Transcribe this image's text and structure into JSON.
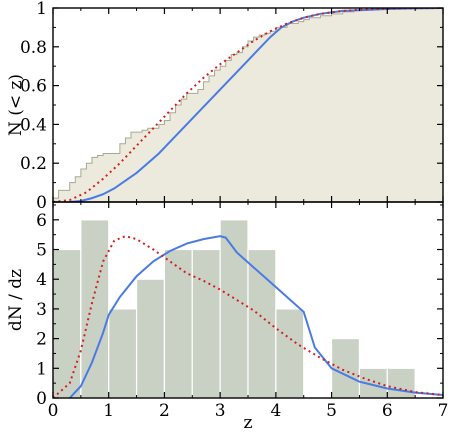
{
  "chart_data": [
    {
      "type": "line",
      "ylabel": "N (< z)",
      "xlim": [
        0,
        7
      ],
      "ylim": [
        0,
        1
      ],
      "xticks": [
        "0",
        "1",
        "2",
        "3",
        "4",
        "5",
        "6",
        "7"
      ],
      "yticks": [
        "0",
        "0.2",
        "0.4",
        "0.6",
        "0.8",
        "1"
      ],
      "colors": {
        "fill": "#ece9dd",
        "edge": "#a6aa92",
        "blue": "#4a7be4",
        "red": "#d21f1f"
      },
      "step_cdf": {
        "x": [
          0.0,
          0.1,
          0.2,
          0.3,
          0.4,
          0.5,
          0.6,
          0.7,
          0.8,
          0.9,
          1.0,
          1.1,
          1.2,
          1.3,
          1.4,
          1.5,
          1.6,
          1.7,
          1.8,
          1.9,
          2.0,
          2.1,
          2.2,
          2.3,
          2.4,
          2.5,
          2.6,
          2.7,
          2.8,
          2.9,
          3.0,
          3.1,
          3.2,
          3.3,
          3.4,
          3.5,
          3.6,
          3.7,
          3.8,
          3.9,
          4.0,
          4.2,
          4.4,
          4.5,
          4.6,
          4.8,
          5.0,
          5.2,
          5.4,
          5.6,
          5.8,
          6.0,
          6.2,
          6.5,
          6.8
        ],
        "y": [
          0.02,
          0.06,
          0.06,
          0.1,
          0.13,
          0.17,
          0.2,
          0.23,
          0.24,
          0.25,
          0.25,
          0.25,
          0.3,
          0.33,
          0.36,
          0.36,
          0.37,
          0.38,
          0.38,
          0.4,
          0.42,
          0.46,
          0.5,
          0.53,
          0.56,
          0.56,
          0.58,
          0.62,
          0.65,
          0.68,
          0.7,
          0.73,
          0.76,
          0.77,
          0.8,
          0.83,
          0.85,
          0.86,
          0.87,
          0.88,
          0.9,
          0.92,
          0.93,
          0.94,
          0.95,
          0.96,
          0.97,
          0.98,
          0.99,
          0.99,
          1.0,
          1.0,
          1.0,
          1.0,
          1.0
        ]
      },
      "blue_curve": {
        "x": [
          0.3,
          0.5,
          0.7,
          0.9,
          1.1,
          1.3,
          1.5,
          1.7,
          1.9,
          2.1,
          2.3,
          2.5,
          2.7,
          2.9,
          3.1,
          3.3,
          3.5,
          3.7,
          3.9,
          4.1,
          4.3,
          4.5,
          4.8,
          5.2,
          5.6,
          6.0,
          6.5,
          7.0
        ],
        "y": [
          0.0,
          0.005,
          0.02,
          0.04,
          0.07,
          0.11,
          0.15,
          0.2,
          0.25,
          0.31,
          0.37,
          0.43,
          0.49,
          0.55,
          0.61,
          0.67,
          0.73,
          0.79,
          0.85,
          0.9,
          0.93,
          0.95,
          0.97,
          0.985,
          0.99,
          0.995,
          0.998,
          1.0
        ]
      },
      "red_curve": {
        "x": [
          0.0,
          0.3,
          0.6,
          0.9,
          1.2,
          1.5,
          1.8,
          2.1,
          2.4,
          2.7,
          3.0,
          3.3,
          3.6,
          3.9,
          4.2,
          4.5,
          4.8,
          5.2,
          5.6,
          6.0,
          6.5,
          7.0
        ],
        "y": [
          0.0,
          0.01,
          0.05,
          0.12,
          0.2,
          0.29,
          0.38,
          0.47,
          0.56,
          0.64,
          0.71,
          0.77,
          0.83,
          0.88,
          0.92,
          0.95,
          0.97,
          0.985,
          0.993,
          0.997,
          0.999,
          1.0
        ]
      }
    },
    {
      "type": "bar",
      "xlabel": "z",
      "ylabel": "dN / dz",
      "xlim": [
        0,
        7
      ],
      "ylim": [
        0,
        6.6
      ],
      "xticks": [
        "0",
        "1",
        "2",
        "3",
        "4",
        "5",
        "6",
        "7"
      ],
      "yticks": [
        "0",
        "1",
        "2",
        "3",
        "4",
        "5",
        "6"
      ],
      "colors": {
        "bar": "#c9d0c4",
        "bar_edge": "#ffffff",
        "blue": "#4a7be4",
        "red": "#d21f1f"
      },
      "bins": [
        {
          "x0": 0.0,
          "x1": 0.5,
          "value": 5
        },
        {
          "x0": 0.5,
          "x1": 1.0,
          "value": 6
        },
        {
          "x0": 1.0,
          "x1": 1.5,
          "value": 3
        },
        {
          "x0": 1.5,
          "x1": 2.0,
          "value": 4
        },
        {
          "x0": 2.0,
          "x1": 2.5,
          "value": 5
        },
        {
          "x0": 2.5,
          "x1": 3.0,
          "value": 5
        },
        {
          "x0": 3.0,
          "x1": 3.5,
          "value": 6
        },
        {
          "x0": 3.5,
          "x1": 4.0,
          "value": 5
        },
        {
          "x0": 4.0,
          "x1": 4.5,
          "value": 3
        },
        {
          "x0": 5.0,
          "x1": 5.5,
          "value": 2
        },
        {
          "x0": 5.5,
          "x1": 6.0,
          "value": 1
        },
        {
          "x0": 6.0,
          "x1": 6.5,
          "value": 1
        }
      ],
      "blue_curve": {
        "x": [
          0.3,
          0.5,
          0.7,
          0.9,
          1.0,
          1.2,
          1.5,
          1.8,
          2.1,
          2.4,
          2.7,
          3.0,
          3.1,
          3.3,
          3.6,
          3.9,
          4.2,
          4.5,
          4.7,
          5.0,
          5.5,
          6.0,
          6.5,
          7.0
        ],
        "y": [
          0.0,
          0.4,
          1.2,
          2.2,
          2.8,
          3.4,
          4.1,
          4.6,
          4.95,
          5.2,
          5.35,
          5.45,
          5.4,
          4.9,
          4.4,
          3.9,
          3.4,
          2.9,
          1.7,
          1.0,
          0.55,
          0.32,
          0.18,
          0.1
        ]
      },
      "red_curve": {
        "x": [
          0.0,
          0.3,
          0.5,
          0.7,
          0.9,
          1.1,
          1.3,
          1.5,
          1.8,
          2.1,
          2.4,
          2.7,
          3.0,
          3.3,
          3.6,
          4.0,
          4.4,
          4.8,
          5.2,
          5.6,
          6.0,
          6.5,
          7.0
        ],
        "y": [
          0.0,
          0.5,
          1.6,
          3.2,
          4.6,
          5.3,
          5.45,
          5.35,
          5.0,
          4.6,
          4.2,
          3.95,
          3.65,
          3.3,
          2.95,
          2.35,
          1.8,
          1.35,
          0.95,
          0.65,
          0.4,
          0.2,
          0.1
        ]
      }
    }
  ]
}
